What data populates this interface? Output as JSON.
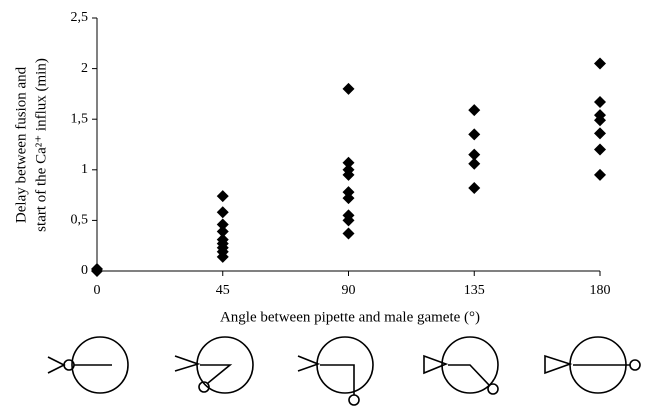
{
  "chart_data": {
    "type": "scatter",
    "xlabel": "Angle between pipette and male gamete (°)",
    "ylabel_lines": [
      "Delay between fusion and",
      "start of the Ca²⁺ influx (min)"
    ],
    "series": [
      {
        "color": "#000000",
        "x": [
          0,
          0,
          45,
          45,
          45,
          45,
          45,
          45,
          45,
          45,
          45,
          90,
          90,
          90,
          90,
          90,
          90,
          90,
          90,
          90,
          135,
          135,
          135,
          135,
          135,
          180,
          180,
          180,
          180,
          180,
          180,
          180
        ],
        "values": [
          0,
          0.02,
          0.74,
          0.58,
          0.46,
          0.39,
          0.31,
          0.27,
          0.23,
          0.19,
          0.14,
          1.8,
          1.07,
          1.0,
          0.95,
          0.78,
          0.72,
          0.55,
          0.5,
          0.37,
          1.59,
          1.35,
          1.15,
          1.06,
          0.82,
          2.05,
          1.67,
          1.54,
          1.49,
          1.36,
          1.2,
          0.95
        ]
      }
    ],
    "xlim": [
      0,
      180
    ],
    "xticks": [
      0,
      45,
      90,
      135,
      180
    ],
    "ylim": [
      0,
      2.5
    ],
    "yticks": [
      0,
      {
        "value": 0.5,
        "label": "0,5"
      },
      1,
      {
        "value": 1.5,
        "label": "1,5"
      },
      2,
      {
        "value": 2.5,
        "label": "2,5"
      }
    ]
  }
}
